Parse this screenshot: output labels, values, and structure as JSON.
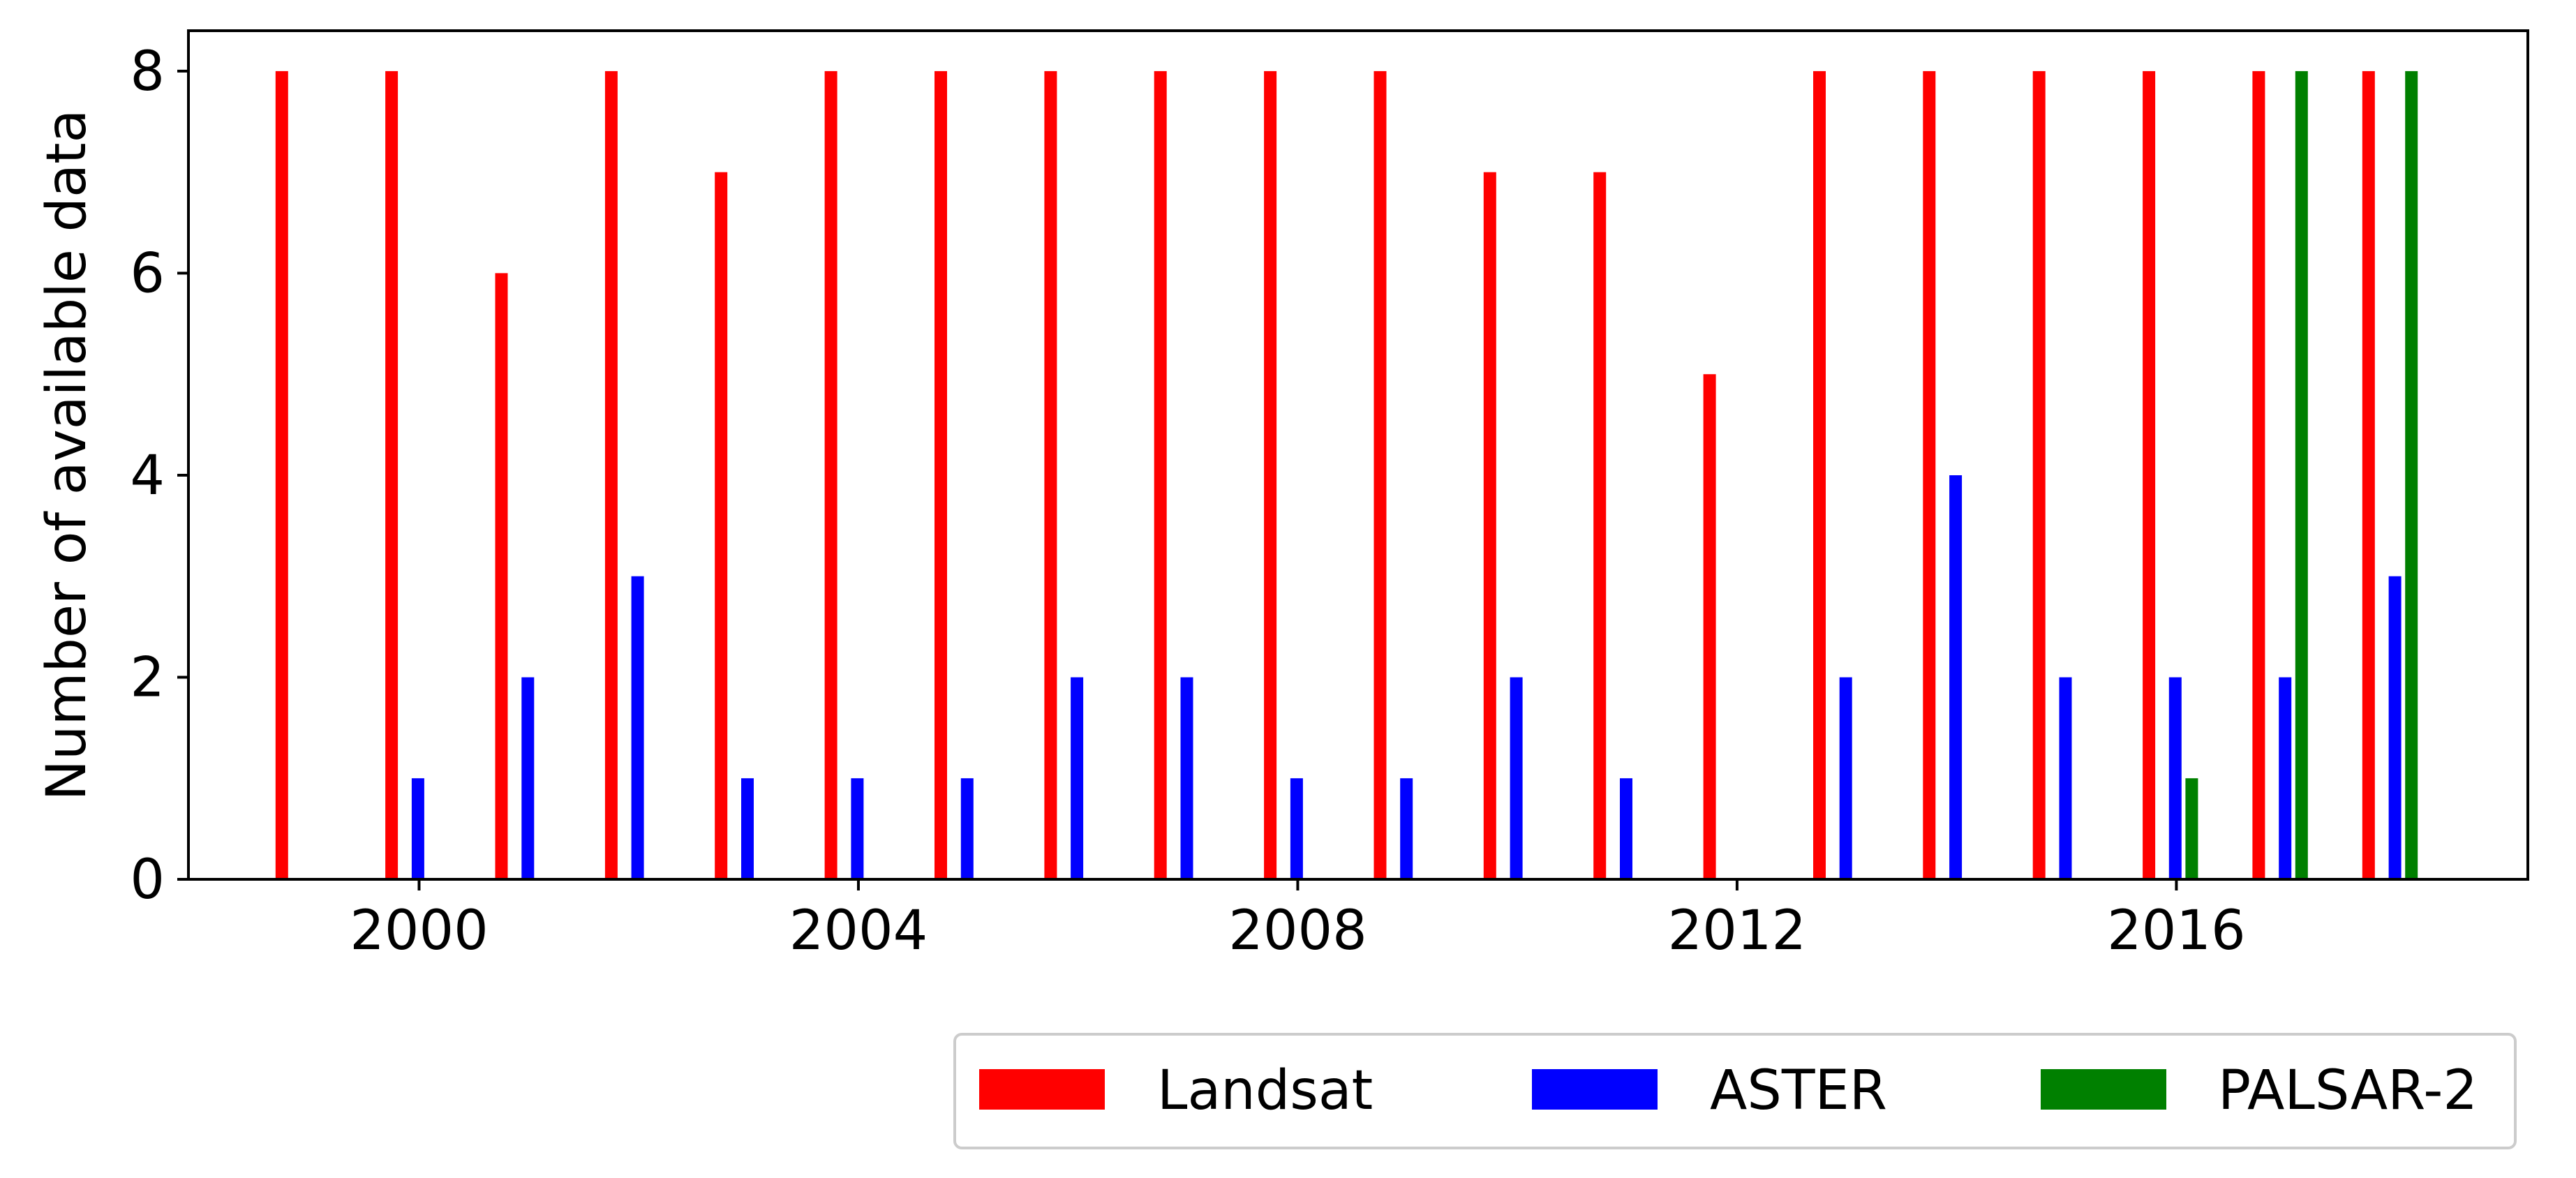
{
  "chart_data": {
    "type": "bar",
    "title": "",
    "xlabel": "",
    "ylabel": "Number of available data",
    "xlim": [
      1997.9,
      2019.2
    ],
    "ylim": [
      0,
      8.4
    ],
    "xticks": [
      2000,
      2004,
      2008,
      2012,
      2016
    ],
    "xtick_labels": [
      "2000",
      "2004",
      "2008",
      "2012",
      "2016"
    ],
    "yticks": [
      0,
      2,
      4,
      6,
      8
    ],
    "ytick_labels": [
      "0",
      "2",
      "4",
      "6",
      "8"
    ],
    "grid": false,
    "legend": {
      "placement": "bottom-right, below plot"
    },
    "series": [
      {
        "name": "Landsat",
        "color": "#ff0000",
        "x": [
          1999,
          2000,
          2001,
          2002,
          2003,
          2004,
          2005,
          2006,
          2007,
          2008,
          2009,
          2010,
          2011,
          2012,
          2013,
          2014,
          2015,
          2016,
          2017,
          2018
        ],
        "values": [
          8,
          8,
          6,
          8,
          7,
          8,
          8,
          8,
          8,
          8,
          8,
          7,
          7,
          5,
          8,
          8,
          8,
          8,
          8,
          8
        ]
      },
      {
        "name": "ASTER",
        "color": "#0000ff",
        "x": [
          2000,
          2001,
          2002,
          2003,
          2004,
          2005,
          2006,
          2007,
          2008,
          2009,
          2010,
          2011,
          2013,
          2014,
          2015,
          2016,
          2017,
          2018
        ],
        "values": [
          1,
          2,
          3,
          1,
          1,
          1,
          2,
          2,
          1,
          1,
          2,
          1,
          2,
          4,
          2,
          2,
          2,
          3
        ]
      },
      {
        "name": "PALSAR-2",
        "color": "#008000",
        "x": [
          2016,
          2017,
          2018
        ],
        "values": [
          1,
          8,
          8
        ]
      }
    ]
  }
}
